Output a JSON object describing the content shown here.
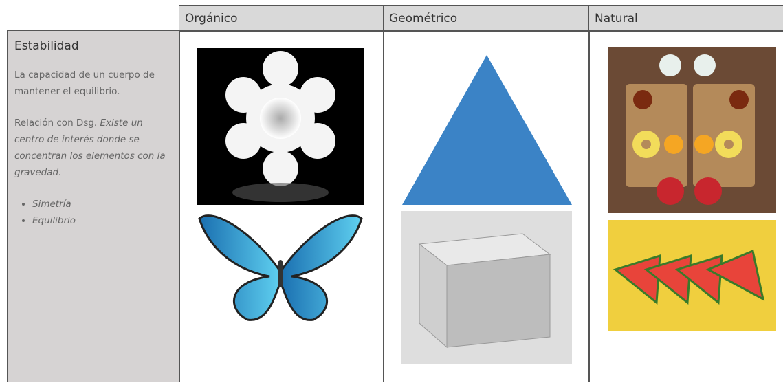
{
  "table": {
    "header": [
      "Orgánico",
      "Geométrico",
      "Natural"
    ],
    "row": {
      "title": "Estabilidad",
      "definition": "La capacidad de un cuerpo de mantener el equilibrio.",
      "relation_label": "Relación con Dsg.",
      "relation_text": "Existe un centro de interés donde se concentran los elementos con la gravedad.",
      "bullets": [
        "Simetría",
        "Equilibrio"
      ]
    }
  }
}
